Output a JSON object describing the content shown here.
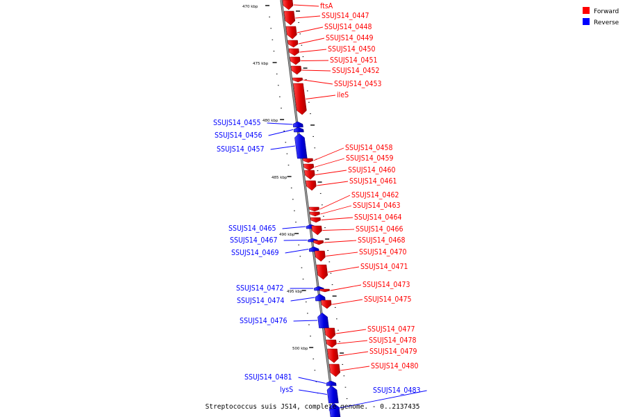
{
  "caption": "Streptococcus suis JS14, complete genome. - 0..2137435",
  "legend": [
    {
      "label": "Forward",
      "color": "#ff0000"
    },
    {
      "label": "Reverse",
      "color": "#0000ff"
    }
  ],
  "colors": {
    "forward": "#ff0000",
    "reverse": "#0000ff",
    "backbone": "#808080"
  },
  "axis": {
    "unit": "kbp",
    "labeled_ticks": [
      "470 kbp",
      "475 kbp",
      "480 kbp",
      "485 kbp",
      "490 kbp",
      "495 kbp",
      "500 kbp"
    ]
  },
  "genes": [
    {
      "name": "ftsA",
      "strand": "forward"
    },
    {
      "name": "SSUJS14_0447",
      "strand": "forward"
    },
    {
      "name": "SSUJS14_0448",
      "strand": "forward"
    },
    {
      "name": "SSUJS14_0449",
      "strand": "forward"
    },
    {
      "name": "SSUJS14_0450",
      "strand": "forward"
    },
    {
      "name": "SSUJS14_0451",
      "strand": "forward"
    },
    {
      "name": "SSUJS14_0452",
      "strand": "forward"
    },
    {
      "name": "SSUJS14_0453",
      "strand": "forward"
    },
    {
      "name": "ileS",
      "strand": "forward"
    },
    {
      "name": "SSUJS14_0455",
      "strand": "reverse"
    },
    {
      "name": "SSUJS14_0456",
      "strand": "reverse"
    },
    {
      "name": "SSUJS14_0457",
      "strand": "reverse"
    },
    {
      "name": "SSUJS14_0458",
      "strand": "forward"
    },
    {
      "name": "SSUJS14_0459",
      "strand": "forward"
    },
    {
      "name": "SSUJS14_0460",
      "strand": "forward"
    },
    {
      "name": "SSUJS14_0461",
      "strand": "forward"
    },
    {
      "name": "SSUJS14_0462",
      "strand": "forward"
    },
    {
      "name": "SSUJS14_0463",
      "strand": "forward"
    },
    {
      "name": "SSUJS14_0464",
      "strand": "forward"
    },
    {
      "name": "SSUJS14_0465",
      "strand": "reverse"
    },
    {
      "name": "SSUJS14_0466",
      "strand": "forward"
    },
    {
      "name": "SSUJS14_0467",
      "strand": "reverse"
    },
    {
      "name": "SSUJS14_0468",
      "strand": "forward"
    },
    {
      "name": "SSUJS14_0469",
      "strand": "reverse"
    },
    {
      "name": "SSUJS14_0470",
      "strand": "forward"
    },
    {
      "name": "SSUJS14_0471",
      "strand": "forward"
    },
    {
      "name": "SSUJS14_0472",
      "strand": "reverse"
    },
    {
      "name": "SSUJS14_0473",
      "strand": "forward"
    },
    {
      "name": "SSUJS14_0474",
      "strand": "reverse"
    },
    {
      "name": "SSUJS14_0475",
      "strand": "forward"
    },
    {
      "name": "SSUJS14_0476",
      "strand": "reverse"
    },
    {
      "name": "SSUJS14_0477",
      "strand": "forward"
    },
    {
      "name": "SSUJS14_0478",
      "strand": "forward"
    },
    {
      "name": "SSUJS14_0479",
      "strand": "forward"
    },
    {
      "name": "SSUJS14_0480",
      "strand": "forward"
    },
    {
      "name": "SSUJS14_0481",
      "strand": "reverse"
    },
    {
      "name": "lysS",
      "strand": "reverse"
    },
    {
      "name": "SSUJS14_0483",
      "strand": "reverse"
    }
  ]
}
